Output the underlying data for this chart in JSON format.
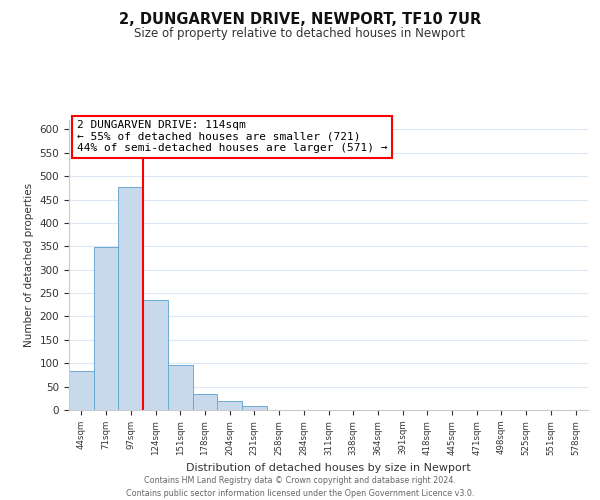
{
  "title": "2, DUNGARVEN DRIVE, NEWPORT, TF10 7UR",
  "subtitle": "Size of property relative to detached houses in Newport",
  "xlabel": "Distribution of detached houses by size in Newport",
  "ylabel": "Number of detached properties",
  "bar_color": "#c8d9ec",
  "bar_edge_color": "#6aaad4",
  "background_color": "#ffffff",
  "grid_color": "#dce8f5",
  "bin_labels": [
    "44sqm",
    "71sqm",
    "97sqm",
    "124sqm",
    "151sqm",
    "178sqm",
    "204sqm",
    "231sqm",
    "258sqm",
    "284sqm",
    "311sqm",
    "338sqm",
    "364sqm",
    "391sqm",
    "418sqm",
    "445sqm",
    "471sqm",
    "498sqm",
    "525sqm",
    "551sqm",
    "578sqm"
  ],
  "bar_heights": [
    83,
    349,
    476,
    236,
    97,
    35,
    19,
    8,
    0,
    0,
    1,
    0,
    0,
    0,
    0,
    1,
    0,
    0,
    0,
    0,
    1
  ],
  "red_line_x": 3,
  "annotation_title": "2 DUNGARVEN DRIVE: 114sqm",
  "annotation_line1": "← 55% of detached houses are smaller (721)",
  "annotation_line2": "44% of semi-detached houses are larger (571) →",
  "ylim": [
    0,
    620
  ],
  "yticks": [
    0,
    50,
    100,
    150,
    200,
    250,
    300,
    350,
    400,
    450,
    500,
    550,
    600
  ],
  "footnote1": "Contains HM Land Registry data © Crown copyright and database right 2024.",
  "footnote2": "Contains public sector information licensed under the Open Government Licence v3.0."
}
